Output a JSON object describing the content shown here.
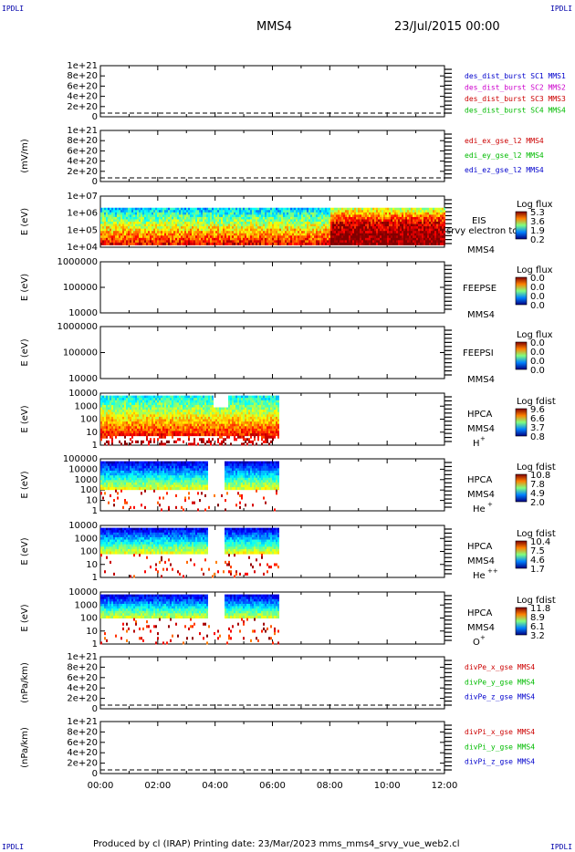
{
  "corners": {
    "tl": "IPDLI",
    "tr": "IPDLI",
    "bl": "IPDLI",
    "br": "IPDLI"
  },
  "header": {
    "title": "MMS4",
    "date": "23/Jul/2015 00:00"
  },
  "footer": {
    "text": "Produced by cl (IRAP)   Printing date: 23/Mar/2023   mms_mms4_srvy_vue_web2.cl"
  },
  "chart_data": {
    "type": "heatmap",
    "xlabel": "",
    "x_ticks": [
      "00:00",
      "02:00",
      "04:00",
      "06:00",
      "08:00",
      "10:00",
      "12:00"
    ],
    "xlim_hours": [
      0,
      12
    ],
    "panels": [
      {
        "id": "des-dist",
        "ylabel": "",
        "y_ticks": [
          "1e+21",
          "8e+20",
          "6e+20",
          "4e+20",
          "2e+20",
          "0"
        ],
        "legend": [
          {
            "text": "des_dist_burst SC1 MMS1",
            "color": "#0000cc"
          },
          {
            "text": "des_dist_burst SC2 MMS2",
            "color": "#cc00cc"
          },
          {
            "text": "des_dist_burst SC3 MMS3",
            "color": "#cc0000"
          },
          {
            "text": "des_dist_burst SC4 MMS4",
            "color": "#00bb00"
          }
        ],
        "zero_line": true
      },
      {
        "id": "edi",
        "ylabel": "(mV/m)",
        "y_ticks": [
          "1e+21",
          "8e+20",
          "6e+20",
          "4e+20",
          "2e+20",
          "0"
        ],
        "legend": [
          {
            "text": "edi_ex_gse_l2 MMS4",
            "color": "#cc0000"
          },
          {
            "text": "edi_ey_gse_l2 MMS4",
            "color": "#00bb00"
          },
          {
            "text": "edi_ez_gse_l2 MMS4",
            "color": "#0000cc"
          }
        ],
        "zero_line": true
      },
      {
        "id": "eis",
        "ylabel": "E (eV)",
        "y_ticks": [
          "1e+07",
          "1e+06",
          "1e+05",
          "1e+04"
        ],
        "labels": [
          "EIS",
          "srvy electron to",
          "MMS4"
        ],
        "cbar_title": "Log flux",
        "cbar_ticks": [
          "5.3",
          "3.6",
          "1.9",
          "0.2"
        ],
        "spectrogram": "eis"
      },
      {
        "id": "feepse",
        "ylabel": "E (eV)",
        "y_ticks": [
          "1000000",
          "100000",
          "10000"
        ],
        "labels": [
          "FEEPSE",
          "MMS4"
        ],
        "cbar_title": "Log flux",
        "cbar_ticks": [
          "0.0",
          "0.0",
          "0.0",
          "0.0"
        ]
      },
      {
        "id": "feepsi",
        "ylabel": "E (eV)",
        "y_ticks": [
          "1000000",
          "100000",
          "10000"
        ],
        "labels": [
          "FEEPSI",
          "MMS4"
        ],
        "cbar_title": "Log flux",
        "cbar_ticks": [
          "0.0",
          "0.0",
          "0.0",
          "0.0"
        ]
      },
      {
        "id": "hpca-h",
        "ylabel": "E (eV)",
        "y_ticks": [
          "10000",
          "1000",
          "100",
          "10",
          "1"
        ],
        "labels": [
          "HPCA",
          "MMS4"
        ],
        "species": "H",
        "species_sup": "+",
        "cbar_title": "Log fdist",
        "cbar_ticks": [
          "9.6",
          "6.6",
          "3.7",
          "0.8"
        ],
        "spectrogram": "hplus",
        "data_end_hours": 6.25
      },
      {
        "id": "hpca-he",
        "ylabel": "E (eV)",
        "y_ticks": [
          "100000",
          "10000",
          "1000",
          "100",
          "10",
          "1"
        ],
        "labels": [
          "HPCA",
          "MMS4"
        ],
        "species": "He",
        "species_sup": "+",
        "cbar_title": "Log fdist",
        "cbar_ticks": [
          "10.8",
          "7.8",
          "4.9",
          "2.0"
        ],
        "spectrogram": "heplus",
        "data_end_hours": 6.25
      },
      {
        "id": "hpca-hepp",
        "ylabel": "E (eV)",
        "y_ticks": [
          "10000",
          "1000",
          "100",
          "10",
          "1"
        ],
        "labels": [
          "HPCA",
          "MMS4"
        ],
        "species": "He",
        "species_sup": "++",
        "cbar_title": "Log fdist",
        "cbar_ticks": [
          "10.4",
          "7.5",
          "4.6",
          "1.7"
        ],
        "spectrogram": "heplusplus",
        "data_end_hours": 6.25
      },
      {
        "id": "hpca-o",
        "ylabel": "E (eV)",
        "y_ticks": [
          "10000",
          "1000",
          "100",
          "10",
          "1"
        ],
        "labels": [
          "HPCA",
          "MMS4"
        ],
        "species": "O",
        "species_sup": "+",
        "cbar_title": "Log fdist",
        "cbar_ticks": [
          "11.8",
          "8.9",
          "6.1",
          "3.2"
        ],
        "spectrogram": "oplus",
        "data_end_hours": 6.25
      },
      {
        "id": "divpe",
        "ylabel": "(nPa/km)",
        "y_ticks": [
          "1e+21",
          "8e+20",
          "6e+20",
          "4e+20",
          "2e+20",
          "0"
        ],
        "legend": [
          {
            "text": "divPe_x_gse MMS4",
            "color": "#cc0000"
          },
          {
            "text": "divPe_y_gse MMS4",
            "color": "#00bb00"
          },
          {
            "text": "divPe_z_gse MMS4",
            "color": "#0000cc"
          }
        ],
        "zero_line": true
      },
      {
        "id": "divpi",
        "ylabel": "(nPa/km)",
        "y_ticks": [
          "1e+21",
          "8e+20",
          "6e+20",
          "4e+20",
          "2e+20",
          "0"
        ],
        "legend": [
          {
            "text": "divPi_x_gse MMS4",
            "color": "#cc0000"
          },
          {
            "text": "divPi_y_gse MMS4",
            "color": "#00bb00"
          },
          {
            "text": "divPi_z_gse MMS4",
            "color": "#0000cc"
          }
        ],
        "zero_line": true
      }
    ]
  }
}
